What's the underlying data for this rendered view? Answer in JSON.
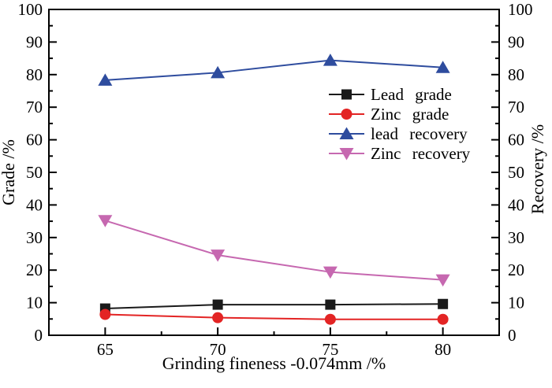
{
  "chart_data": {
    "type": "line",
    "title": "",
    "xlabel": "Grinding fineness -0.074mm /%",
    "ylabel_left": "Grade /%",
    "ylabel_right": "Recovery /%",
    "x": [
      65,
      70,
      75,
      80
    ],
    "x_tick_labels": [
      "65",
      "70",
      "75",
      "80"
    ],
    "x_minor_ticks": [
      67.5,
      72.5,
      77.5
    ],
    "xlim": [
      62.5,
      82.5
    ],
    "ylim": [
      0,
      100
    ],
    "y_major_ticks": [
      0,
      10,
      20,
      30,
      40,
      50,
      60,
      70,
      80,
      90,
      100
    ],
    "y_minor_step": 5,
    "grid": false,
    "legend_position": "center-right",
    "axis_color": "#000000",
    "background_color": "#ffffff",
    "series": [
      {
        "name": "Lead grade",
        "axis": "left",
        "color": "#1a1a1a",
        "marker": "square",
        "values": [
          8.2,
          9.4,
          9.4,
          9.6
        ]
      },
      {
        "name": "Zinc grade",
        "axis": "left",
        "color": "#e32424",
        "marker": "circle",
        "values": [
          6.4,
          5.4,
          4.9,
          4.9
        ]
      },
      {
        "name": "lead recovery",
        "axis": "right",
        "color": "#2e4c9e",
        "marker": "triangle-up",
        "values": [
          78.3,
          80.6,
          84.4,
          82.2
        ]
      },
      {
        "name": "Zinc recovery",
        "axis": "right",
        "color": "#c668b0",
        "marker": "triangle-down",
        "values": [
          35.2,
          24.6,
          19.4,
          17.0
        ]
      }
    ]
  }
}
